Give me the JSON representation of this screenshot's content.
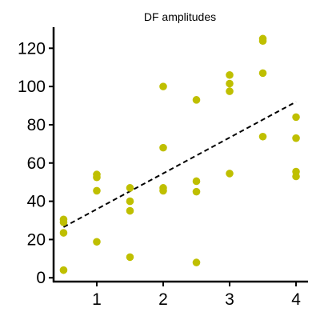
{
  "chart_data": {
    "type": "scatter",
    "title": "DF amplitudes",
    "xlabel": "",
    "ylabel": "",
    "xlim": [
      0.35,
      4.18
    ],
    "ylim": [
      -2,
      131
    ],
    "xticks": [
      1,
      2,
      3,
      4
    ],
    "yticks": [
      0,
      20,
      40,
      60,
      80,
      100,
      120
    ],
    "grid": false,
    "legend": "none",
    "point_color": "#bfbf00",
    "points": [
      {
        "x": 0.5,
        "y": 30.5
      },
      {
        "x": 0.5,
        "y": 29.0
      },
      {
        "x": 0.5,
        "y": 23.5
      },
      {
        "x": 0.5,
        "y": 4.0
      },
      {
        "x": 1.0,
        "y": 54.0
      },
      {
        "x": 1.0,
        "y": 52.5
      },
      {
        "x": 1.0,
        "y": 45.5
      },
      {
        "x": 1.0,
        "y": 18.8
      },
      {
        "x": 1.5,
        "y": 47.0
      },
      {
        "x": 1.5,
        "y": 40.0
      },
      {
        "x": 1.5,
        "y": 35.0
      },
      {
        "x": 1.5,
        "y": 10.8
      },
      {
        "x": 2.0,
        "y": 100.0
      },
      {
        "x": 2.0,
        "y": 68.0
      },
      {
        "x": 2.0,
        "y": 47.0
      },
      {
        "x": 2.0,
        "y": 45.5
      },
      {
        "x": 2.5,
        "y": 93.0
      },
      {
        "x": 2.5,
        "y": 50.5
      },
      {
        "x": 2.5,
        "y": 45.0
      },
      {
        "x": 2.5,
        "y": 8.0
      },
      {
        "x": 3.0,
        "y": 106.0
      },
      {
        "x": 3.0,
        "y": 101.5
      },
      {
        "x": 3.0,
        "y": 97.5
      },
      {
        "x": 3.0,
        "y": 54.5
      },
      {
        "x": 3.5,
        "y": 125.0
      },
      {
        "x": 3.5,
        "y": 123.8
      },
      {
        "x": 3.5,
        "y": 107.0
      },
      {
        "x": 3.5,
        "y": 73.8
      },
      {
        "x": 4.0,
        "y": 84.0
      },
      {
        "x": 4.0,
        "y": 73.0
      },
      {
        "x": 4.0,
        "y": 55.5
      },
      {
        "x": 4.0,
        "y": 53.0
      }
    ],
    "trend_line": {
      "style": "dashed",
      "color": "#000000",
      "x": [
        0.5,
        4.0
      ],
      "y": [
        26.5,
        92.0
      ]
    }
  }
}
